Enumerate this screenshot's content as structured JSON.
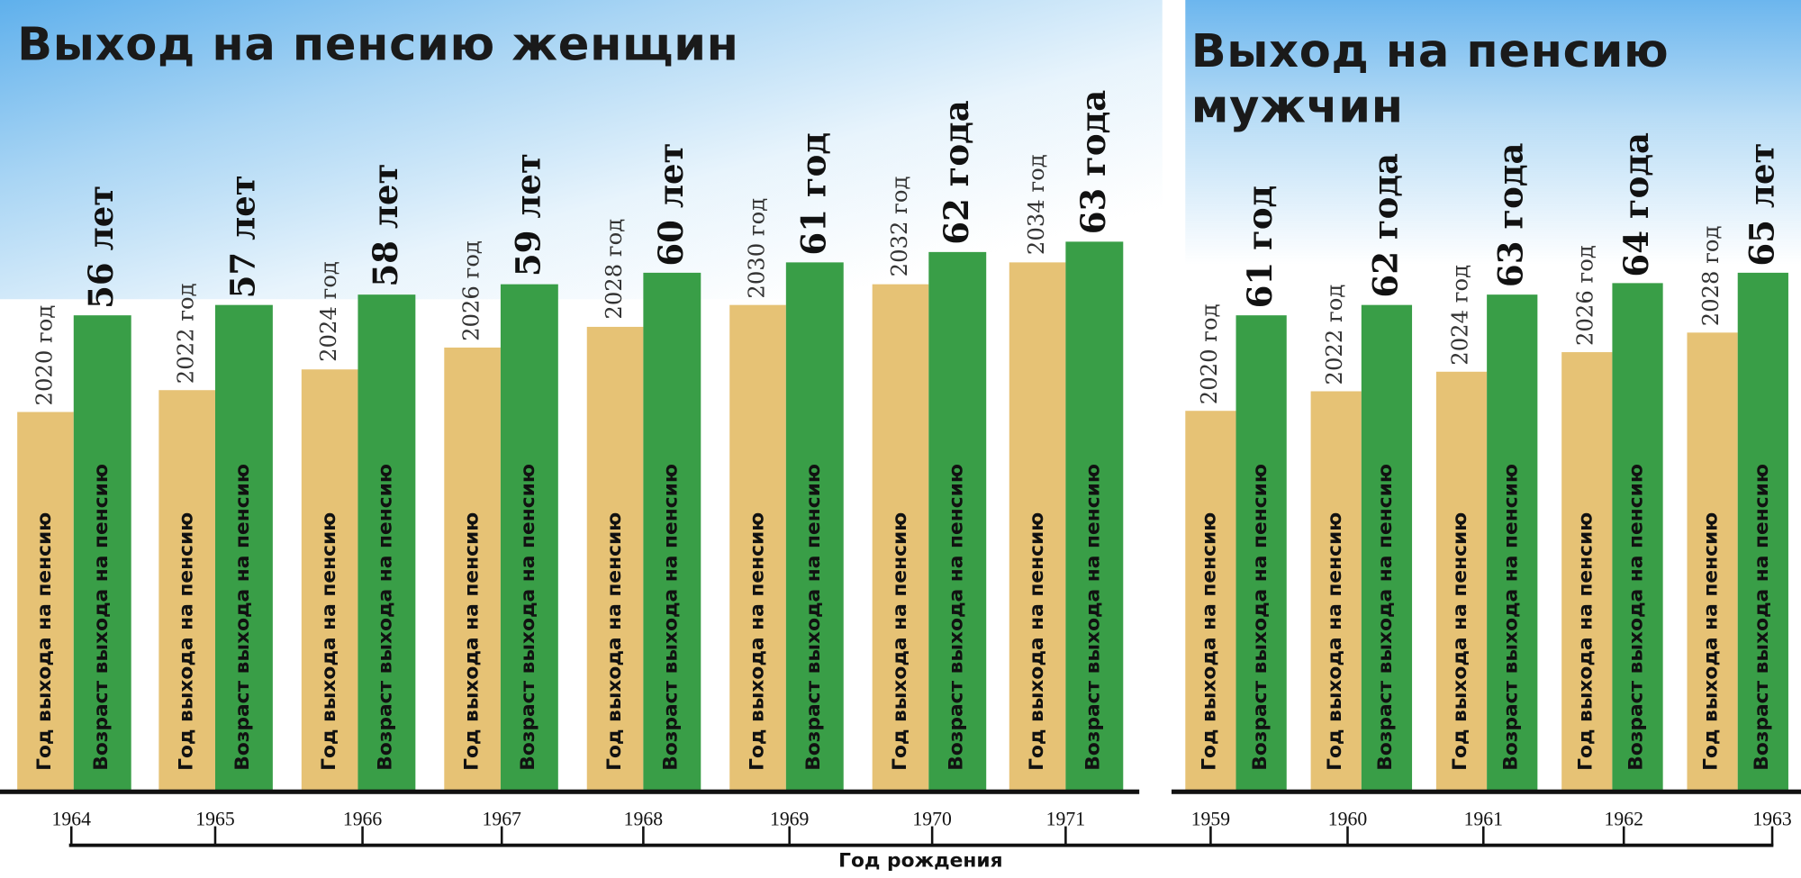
{
  "chart_data": [
    {
      "type": "bar",
      "title": "Выход на пенсию женщин",
      "categories": [
        "1964",
        "1965",
        "1966",
        "1967",
        "1968",
        "1969",
        "1970",
        "1971"
      ],
      "series": [
        {
          "name": "Год выхода на пенсию",
          "values": [
            2020,
            2022,
            2024,
            2026,
            2028,
            2030,
            2032,
            2034
          ],
          "labels": [
            "2020 год",
            "2022 год",
            "2024 год",
            "2026 год",
            "2028 год",
            "2030 год",
            "2032 год",
            "2034 год"
          ],
          "color": "#e6c275"
        },
        {
          "name": "Возраст выхода на пенсию",
          "values": [
            56,
            57,
            58,
            59,
            60,
            61,
            62,
            63
          ],
          "labels": [
            "56 лет",
            "57 лет",
            "58 лет",
            "59 лет",
            "60 лет",
            "61 год",
            "62 года",
            "63 года"
          ],
          "color": "#399e47"
        }
      ]
    },
    {
      "type": "bar",
      "title": "Выход на пенсию мужчин",
      "categories": [
        "1959",
        "1960",
        "1961",
        "1962",
        "1963"
      ],
      "series": [
        {
          "name": "Год выхода на пенсию",
          "values": [
            2020,
            2022,
            2024,
            2026,
            2028
          ],
          "labels": [
            "2020 год",
            "2022 год",
            "2024 год",
            "2026 год",
            "2028 год"
          ],
          "color": "#e6c275"
        },
        {
          "name": "Возраст выхода на пенсию",
          "values": [
            61,
            62,
            63,
            64,
            65
          ],
          "labels": [
            "61 год",
            "62 года",
            "63 года",
            "64 года",
            "65 лет"
          ],
          "color": "#399e47"
        }
      ]
    }
  ],
  "titles": {
    "women": "Выход на пенсию женщин",
    "men_line1": "Выход на пенсию",
    "men_line2": "мужчин"
  },
  "xlabel": "Год рождения"
}
